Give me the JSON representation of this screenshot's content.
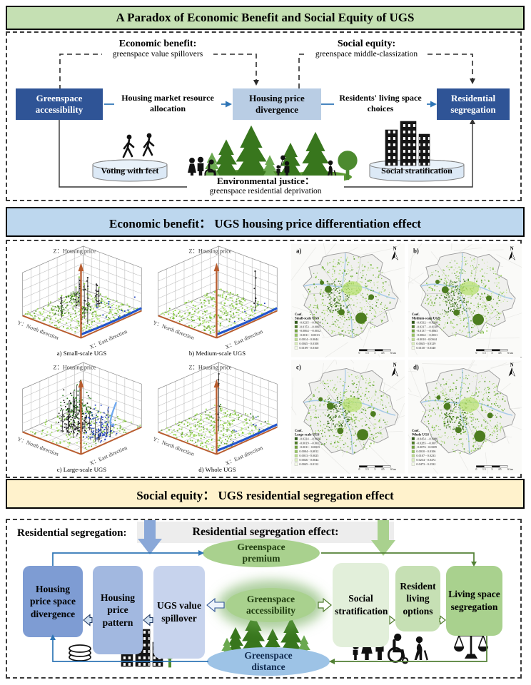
{
  "title_banner": "A Paradox of Economic Benefit and Social Equity of UGS",
  "economic_banner": "Economic benefit：  UGS housing price differentiation effect",
  "social_banner": "Social equity：  UGS residential segregation effect",
  "paradox": {
    "economic_label": "Economic benefit:",
    "economic_sub": "greenspace value spillovers",
    "social_label": "Social equity:",
    "social_sub": "greenspace middle-classization",
    "box_accessibility": "Greenspace accessibility",
    "box_divergence": "Housing price divergence",
    "box_segregation": "Residential segregation",
    "arrow_market": "Housing market resource allocation",
    "arrow_choices": "Residents' living space choices",
    "cylinder_left": "Voting with feet",
    "cylinder_right": "Social stratification",
    "justice_label": "Environmental justice：",
    "justice_sub": "greenspace residential deprivation"
  },
  "scatter_section": {
    "axis_z": "Z：Housing price",
    "axis_y": "Y：North direction",
    "axis_x": "X：East direction",
    "plots": [
      {
        "caption": "a) Small-scale UGS",
        "style": "spiky"
      },
      {
        "caption": "b) Medium-scale UGS",
        "style": "flat"
      },
      {
        "caption": "c) Large-scale UGS",
        "style": "clustered"
      },
      {
        "caption": "d) Whole UGS",
        "style": "flat-spike"
      }
    ]
  },
  "maps_section": {
    "north_label": "N",
    "scale_labels": [
      "0",
      "1.5",
      "3",
      "4.5",
      "6 km"
    ],
    "legend_colors": [
      "#2d5a16",
      "#4e7d27",
      "#71a33c",
      "#97c562",
      "#bcdd8f",
      "#dcefbd",
      "#f3fae6"
    ],
    "maps": [
      {
        "label": "a)",
        "legend_title": "Coef.",
        "legend_subtitle": "Small-scale UGS",
        "classes": [
          "-0.0235 - -0.0154",
          "-0.0153 - -0.0065",
          "-0.0064 - -0.0012",
          "-0.0011 - 0.0013",
          "0.0014 - 0.0044",
          "0.0045 - 0.0108",
          "0.0109 - 0.0160"
        ]
      },
      {
        "label": "b)",
        "legend_title": "Coef.",
        "legend_subtitle": "Medium-scale UGS",
        "classes": [
          "-0.0332 - -0.0218",
          "-0.0217 - -0.0138",
          "-0.0137 - -0.0063",
          "-0.0062 - -0.0011",
          "-0.0010 - 0.0044",
          "0.0045 - 0.0129",
          "0.0130 - 0.0340"
        ]
      },
      {
        "label": "c)",
        "legend_title": "Coef.",
        "legend_subtitle": "Large-scale UGS",
        "classes": [
          "-0.0224 - -0.0020",
          "-0.0019 - -0.0012",
          "-0.0011 - 0.0003",
          "0.0004 - 0.0012",
          "0.0013 - 0.0025",
          "0.0026 - 0.0044",
          "0.0045 - 0.0112"
        ]
      },
      {
        "label": "d)",
        "legend_title": "Coef.",
        "legend_subtitle": "Whole UGS",
        "classes": [
          "-0.0454 - -0.0286",
          "-0.0285 - -0.0077",
          "-0.0076 - 0.0009",
          "0.0010 - 0.0106",
          "0.0107 - 0.0233",
          "0.0234 - 0.0472",
          "0.0473 - 0.2332"
        ]
      }
    ]
  },
  "segregation": {
    "outside_label": "Residential segregation:",
    "banner": "Residential segregation effect:",
    "ellipse_premium": "Greenspace premium",
    "ellipse_accessibility": "Greenspace accessibility",
    "ellipse_distance": "Greenspace distance",
    "blue_boxes": [
      "Housing price space divergence",
      "Housing price pattern",
      "UGS value spillover"
    ],
    "green_boxes": [
      "Social stratification",
      "Resident living options",
      "Living space segregation"
    ]
  },
  "icons": {
    "dollar": "$"
  }
}
